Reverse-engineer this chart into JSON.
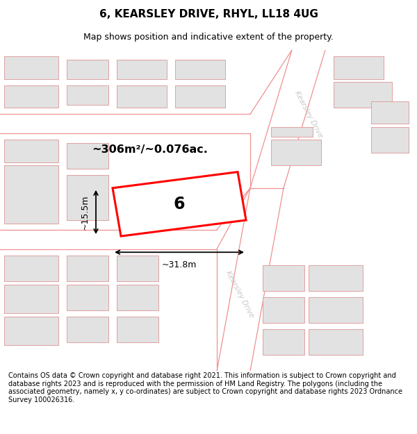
{
  "title": "6, KEARSLEY DRIVE, RHYL, LL18 4UG",
  "subtitle": "Map shows position and indicative extent of the property.",
  "footer": "Contains OS data © Crown copyright and database right 2021. This information is subject to Crown copyright and database rights 2023 and is reproduced with the permission of HM Land Registry. The polygons (including the associated geometry, namely x, y co-ordinates) are subject to Crown copyright and database rights 2023 Ordnance Survey 100026316.",
  "bg_color": "#ffffff",
  "map_bg": "#f7f7f7",
  "area_label": "~306m²/~0.076ac.",
  "number_label": "6",
  "width_label": "~31.8m",
  "height_label": "~15.5m",
  "road_label_1": "Kearsley Drive",
  "road_label_2": "Kearsley Drive",
  "title_fontsize": 11,
  "subtitle_fontsize": 9,
  "footer_fontsize": 7.0,
  "highlight_color": "#ff0000",
  "building_fill": "#e2e2e2",
  "building_outline": "#e8a0a0",
  "road_color": "#f09090",
  "road_label_color": "#c8c8c8",
  "dimension_color": "#000000"
}
